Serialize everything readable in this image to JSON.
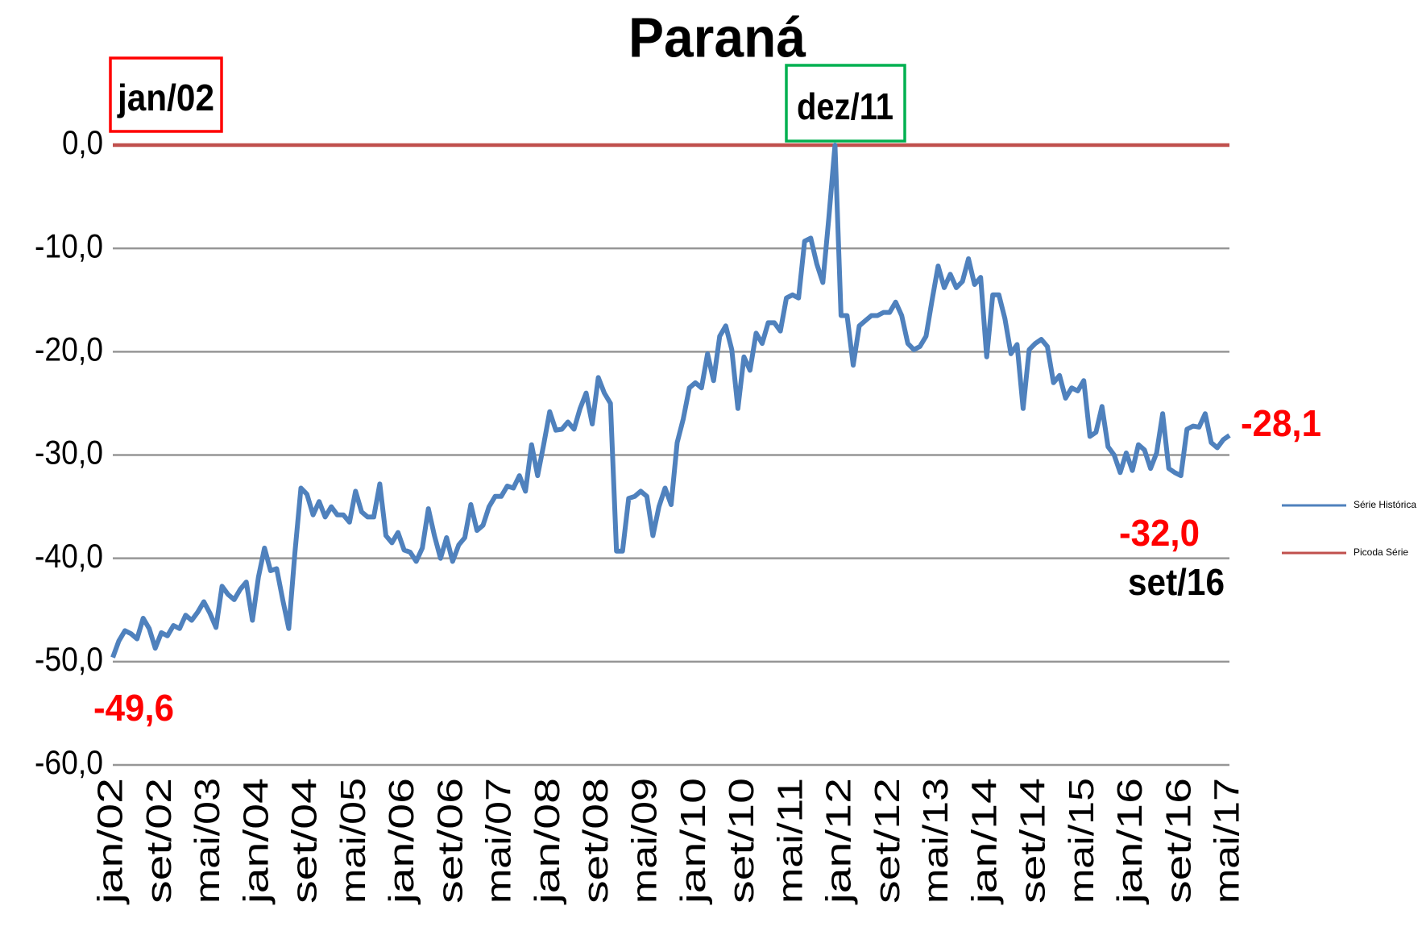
{
  "chart_data": {
    "type": "line",
    "title": "Paraná",
    "categories": [
      "jan/02",
      null,
      null,
      null,
      null,
      null,
      null,
      null,
      "set/02",
      null,
      null,
      null,
      null,
      null,
      null,
      null,
      "mai/03",
      null,
      null,
      null,
      null,
      null,
      null,
      null,
      "jan/04",
      null,
      null,
      null,
      null,
      null,
      null,
      null,
      "set/04",
      null,
      null,
      null,
      null,
      null,
      null,
      null,
      "mai/05",
      null,
      null,
      null,
      null,
      null,
      null,
      null,
      "jan/06",
      null,
      null,
      null,
      null,
      null,
      null,
      null,
      "set/06",
      null,
      null,
      null,
      null,
      null,
      null,
      null,
      "mai/07",
      null,
      null,
      null,
      null,
      null,
      null,
      null,
      "jan/08",
      null,
      null,
      null,
      null,
      null,
      null,
      null,
      "set/08",
      null,
      null,
      null,
      null,
      null,
      null,
      null,
      "mai/09",
      null,
      null,
      null,
      null,
      null,
      null,
      null,
      "jan/10",
      null,
      null,
      null,
      null,
      null,
      null,
      null,
      "set/10",
      null,
      null,
      null,
      null,
      null,
      null,
      null,
      "mai/11",
      null,
      null,
      null,
      null,
      null,
      null,
      null,
      "jan/12",
      null,
      null,
      null,
      null,
      null,
      null,
      null,
      "set/12",
      null,
      null,
      null,
      null,
      null,
      null,
      null,
      "mai/13",
      null,
      null,
      null,
      null,
      null,
      null,
      null,
      "jan/14",
      null,
      null,
      null,
      null,
      null,
      null,
      null,
      "set/14",
      null,
      null,
      null,
      null,
      null,
      null,
      null,
      "mai/15",
      null,
      null,
      null,
      null,
      null,
      null,
      null,
      "jan/16",
      null,
      null,
      null,
      null,
      null,
      null,
      null,
      "set/16",
      null,
      null,
      null,
      null,
      null,
      null,
      null,
      "mai/17"
    ],
    "series": [
      {
        "name": "Série Histórica",
        "color": "#4f81bd",
        "values": [
          -49.6,
          -48.0,
          -47.0,
          -47.3,
          -47.8,
          -45.8,
          -46.8,
          -48.7,
          -47.2,
          -47.5,
          -46.5,
          -46.8,
          -45.5,
          -46.0,
          -45.2,
          -44.2,
          -45.3,
          -46.7,
          -42.7,
          -43.5,
          -44.0,
          -43.0,
          -42.3,
          -46.0,
          -41.8,
          -39.0,
          -41.2,
          -41.0,
          -44.0,
          -46.8,
          -39.5,
          -33.2,
          -33.8,
          -35.8,
          -34.5,
          -36.0,
          -35.0,
          -35.8,
          -35.8,
          -36.5,
          -33.5,
          -35.5,
          -36.0,
          -36.0,
          -32.8,
          -37.8,
          -38.5,
          -37.5,
          -39.2,
          -39.4,
          -40.3,
          -39.0,
          -35.2,
          -37.8,
          -40.0,
          -38.0,
          -40.3,
          -38.7,
          -38.0,
          -34.8,
          -37.3,
          -36.8,
          -35.0,
          -34.0,
          -34.0,
          -33.0,
          -33.2,
          -32.0,
          -33.5,
          -29.0,
          -32.0,
          -29.0,
          -25.8,
          -27.6,
          -27.5,
          -26.8,
          -27.5,
          -25.5,
          -24.0,
          -27.0,
          -22.5,
          -24.0,
          -25.0,
          -39.3,
          -39.3,
          -34.2,
          -34.0,
          -33.5,
          -34.0,
          -37.8,
          -35.0,
          -33.2,
          -34.8,
          -28.8,
          -26.5,
          -23.5,
          -23.0,
          -23.5,
          -20.2,
          -22.8,
          -18.5,
          -17.5,
          -19.8,
          -25.5,
          -20.5,
          -21.8,
          -18.2,
          -19.2,
          -17.2,
          -17.2,
          -18.0,
          -14.8,
          -14.5,
          -14.8,
          -9.3,
          -9.0,
          -11.5,
          -13.3,
          -7.0,
          0.0,
          -16.5,
          -16.5,
          -21.3,
          -17.5,
          -17.0,
          -16.5,
          -16.5,
          -16.2,
          -16.2,
          -15.2,
          -16.5,
          -19.2,
          -19.8,
          -19.5,
          -18.5,
          -15.0,
          -11.7,
          -13.8,
          -12.5,
          -13.8,
          -13.2,
          -11.0,
          -13.5,
          -12.8,
          -20.5,
          -14.5,
          -14.5,
          -16.8,
          -20.2,
          -19.3,
          -25.5,
          -19.8,
          -19.2,
          -18.8,
          -19.5,
          -23.0,
          -22.3,
          -24.5,
          -23.5,
          -23.8,
          -22.8,
          -28.2,
          -27.8,
          -25.3,
          -29.2,
          -30.0,
          -31.7,
          -29.8,
          -31.5,
          -29.0,
          -29.5,
          -31.3,
          -29.8,
          -26.0,
          -31.3,
          -31.7,
          -32.0,
          -27.5,
          -27.2,
          -27.3,
          -26.0,
          -28.8,
          -29.3,
          -28.5,
          -28.1
        ]
      },
      {
        "name": "Picoda Série",
        "color": "#c0504d",
        "values": [
          0,
          0,
          0,
          0,
          0,
          0,
          0,
          0,
          0,
          0,
          0,
          0,
          0,
          0,
          0,
          0,
          0,
          0,
          0,
          0,
          0,
          0,
          0,
          0,
          0,
          0,
          0,
          0,
          0,
          0,
          0,
          0,
          0,
          0,
          0,
          0,
          0,
          0,
          0,
          0,
          0,
          0,
          0,
          0,
          0,
          0,
          0,
          0,
          0,
          0,
          0,
          0,
          0,
          0,
          0,
          0,
          0,
          0,
          0,
          0,
          0,
          0,
          0,
          0,
          0,
          0,
          0,
          0,
          0,
          0,
          0,
          0,
          0,
          0,
          0,
          0,
          0,
          0,
          0,
          0,
          0,
          0,
          0,
          0,
          0,
          0,
          0,
          0,
          0,
          0,
          0,
          0,
          0,
          0,
          0,
          0,
          0,
          0,
          0,
          0,
          0,
          0,
          0,
          0,
          0,
          0,
          0,
          0,
          0,
          0,
          0,
          0,
          0,
          0,
          0,
          0,
          0,
          0,
          0,
          0,
          0,
          0,
          0,
          0,
          0,
          0,
          0,
          0,
          0,
          0,
          0,
          0,
          0,
          0,
          0,
          0,
          0,
          0,
          0,
          0,
          0,
          0,
          0,
          0,
          0,
          0,
          0,
          0,
          0,
          0,
          0,
          0,
          0,
          0,
          0,
          0,
          0,
          0,
          0,
          0,
          0,
          0,
          0,
          0,
          0,
          0,
          0,
          0,
          0,
          0,
          0,
          0,
          0,
          0,
          0,
          0,
          0,
          0,
          0,
          0,
          0,
          0,
          0,
          0,
          0
        ]
      }
    ],
    "ylim": [
      -60,
      0
    ],
    "yticks": [
      {
        "value": 0,
        "label": "0,0"
      },
      {
        "value": -10,
        "label": "-10,0"
      },
      {
        "value": -20,
        "label": "-20,0"
      },
      {
        "value": -30,
        "label": "-30,0"
      },
      {
        "value": -40,
        "label": "-40,0"
      },
      {
        "value": -50,
        "label": "-50,0"
      },
      {
        "value": -60,
        "label": "-60,0"
      }
    ],
    "grid": true,
    "legend": "right",
    "annotations": [
      {
        "text": "jan/02",
        "box": "#ff0000"
      },
      {
        "text": "dez/11",
        "box": "#00b050"
      },
      {
        "text": "-49,6",
        "color": "#ff0000"
      },
      {
        "text": "-28,1",
        "color": "#ff0000"
      },
      {
        "text": "-32,0",
        "color": "#ff0000"
      },
      {
        "text": "set/16",
        "color": "#000000"
      }
    ]
  }
}
